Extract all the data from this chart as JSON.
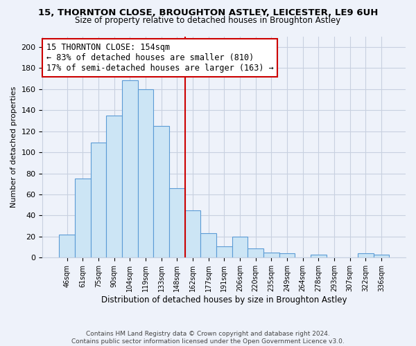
{
  "title1": "15, THORNTON CLOSE, BROUGHTON ASTLEY, LEICESTER, LE9 6UH",
  "title2": "Size of property relative to detached houses in Broughton Astley",
  "xlabel": "Distribution of detached houses by size in Broughton Astley",
  "ylabel": "Number of detached properties",
  "bar_labels": [
    "46sqm",
    "61sqm",
    "75sqm",
    "90sqm",
    "104sqm",
    "119sqm",
    "133sqm",
    "148sqm",
    "162sqm",
    "177sqm",
    "191sqm",
    "206sqm",
    "220sqm",
    "235sqm",
    "249sqm",
    "264sqm",
    "278sqm",
    "293sqm",
    "307sqm",
    "322sqm",
    "336sqm"
  ],
  "bar_values": [
    22,
    75,
    109,
    135,
    168,
    160,
    125,
    66,
    45,
    23,
    11,
    20,
    9,
    5,
    4,
    0,
    3,
    0,
    0,
    4,
    3
  ],
  "bar_color": "#cce5f5",
  "bar_edge_color": "#5b9bd5",
  "vline_color": "#cc0000",
  "annotation_title": "15 THORNTON CLOSE: 154sqm",
  "annotation_line1": "← 83% of detached houses are smaller (810)",
  "annotation_line2": "17% of semi-detached houses are larger (163) →",
  "annotation_box_color": "#ffffff",
  "annotation_box_edge": "#cc0000",
  "ylim": [
    0,
    210
  ],
  "yticks": [
    0,
    20,
    40,
    60,
    80,
    100,
    120,
    140,
    160,
    180,
    200
  ],
  "footnote1": "Contains HM Land Registry data © Crown copyright and database right 2024.",
  "footnote2": "Contains public sector information licensed under the Open Government Licence v3.0.",
  "bg_color": "#eef2fa"
}
